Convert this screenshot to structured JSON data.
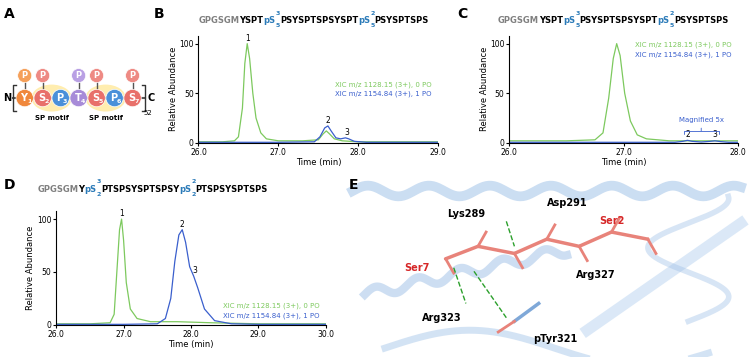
{
  "diagram": {
    "panel": "A",
    "residues": [
      {
        "label": "Y",
        "index": "1",
        "color": "#f0883c",
        "phospho": true,
        "phospho_color": "#f5a05a"
      },
      {
        "label": "S",
        "index": "2",
        "color": "#e8706a",
        "phospho": true,
        "phospho_color": "#ee8a84"
      },
      {
        "label": "P",
        "index": "3",
        "color": "#4a90d9",
        "phospho": false
      },
      {
        "label": "T",
        "index": "4",
        "color": "#a78bd8",
        "phospho": true,
        "phospho_color": "#b9a0e4"
      },
      {
        "label": "S",
        "index": "5",
        "color": "#e8706a",
        "phospho": true,
        "phospho_color": "#ee8a84"
      },
      {
        "label": "P",
        "index": "6",
        "color": "#4a90d9",
        "phospho": false
      },
      {
        "label": "S",
        "index": "7",
        "color": "#e8706a",
        "phospho": true,
        "phospho_color": "#ee8a84"
      }
    ],
    "phospho_label": "P",
    "motifs": [
      {
        "residues": [
          1,
          2
        ],
        "label": "SP motif"
      },
      {
        "residues": [
          4,
          5
        ],
        "label": "SP motif"
      }
    ],
    "n_term": "N",
    "c_term": "C",
    "repeats": "52"
  },
  "chart_data": [
    {
      "panel": "B",
      "type": "line",
      "title_parts": [
        {
          "text": "GPGSGM",
          "color": "#808080"
        },
        {
          "text": "YSPT",
          "color": "#000000"
        },
        {
          "text": "pS",
          "color": "#2a7ab8",
          "sup": "3",
          "sub": "5"
        },
        {
          "text": "PSYSPTSPSYSPT",
          "color": "#000000"
        },
        {
          "text": "pS",
          "color": "#2a7ab8",
          "sup": "2",
          "sub": "5"
        },
        {
          "text": "PSYSPTSPS",
          "color": "#000000"
        }
      ],
      "x_label": "Time (min)",
      "y_label": "Relative Abundance",
      "xlim": [
        26.0,
        29.0
      ],
      "xticks": [
        26.0,
        27.0,
        28.0,
        29.0
      ],
      "ylim": [
        0,
        108
      ],
      "yticks": [
        0,
        50,
        100
      ],
      "legend": "center right",
      "series": [
        {
          "name": "XIC m/z 1128.15 (3+), 0 PO",
          "color": "#7dc95e",
          "x": [
            26.0,
            26.3,
            26.45,
            26.5,
            26.55,
            26.58,
            26.61,
            26.64,
            26.68,
            26.72,
            26.78,
            26.85,
            27.0,
            27.3,
            27.5,
            27.56,
            27.6,
            27.64,
            27.7,
            27.8,
            28.0,
            28.5,
            29.0
          ],
          "values": [
            1,
            1,
            2,
            6,
            35,
            80,
            100,
            85,
            50,
            25,
            10,
            4,
            2,
            2,
            3,
            9,
            12,
            9,
            4,
            2,
            1,
            1,
            1
          ]
        },
        {
          "name": "XIC m/z 1154.84 (3+), 1 PO",
          "color": "#3a5fcd",
          "x": [
            26.0,
            27.0,
            27.45,
            27.52,
            27.58,
            27.62,
            27.66,
            27.72,
            27.78,
            27.84,
            27.88,
            27.95,
            28.1,
            28.5,
            29.0
          ],
          "values": [
            0.5,
            0.5,
            1,
            6,
            15,
            17,
            12,
            5,
            4,
            5,
            4,
            1.5,
            0.5,
            0.5,
            0.5
          ]
        }
      ],
      "annotations": [
        {
          "text": "1",
          "x": 26.61,
          "y": 101,
          "type": "label",
          "color": "#000000"
        },
        {
          "text": "2",
          "x": 27.62,
          "y": 18,
          "type": "label",
          "color": "#000000"
        },
        {
          "text": "3",
          "x": 27.86,
          "y": 6,
          "type": "label",
          "color": "#000000"
        }
      ]
    },
    {
      "panel": "C",
      "type": "line",
      "title_parts": [
        {
          "text": "GPGSGM",
          "color": "#808080"
        },
        {
          "text": "YSPT",
          "color": "#000000"
        },
        {
          "text": "pS",
          "color": "#2a7ab8",
          "sup": "3",
          "sub": "5"
        },
        {
          "text": "PSYSPTSPSYSPT",
          "color": "#000000"
        },
        {
          "text": "pS",
          "color": "#2a7ab8",
          "sup": "2",
          "sub": "5"
        },
        {
          "text": "PSYSPTSPS",
          "color": "#000000"
        }
      ],
      "x_label": "Time (min)",
      "y_label": "Relative Abundance",
      "xlim": [
        26.0,
        28.0
      ],
      "xticks": [
        26.0,
        27.0,
        28.0
      ],
      "ylim": [
        0,
        108
      ],
      "yticks": [
        0,
        50,
        100
      ],
      "legend": "upper right",
      "series": [
        {
          "name": "XIC m/z 1128.15 (3+), 0 PO",
          "color": "#7dc95e",
          "x": [
            26.0,
            26.5,
            26.75,
            26.82,
            26.87,
            26.91,
            26.94,
            26.97,
            27.01,
            27.06,
            27.12,
            27.2,
            27.4,
            27.7,
            28.0
          ],
          "values": [
            2,
            2,
            3,
            10,
            45,
            85,
            100,
            88,
            50,
            22,
            8,
            4,
            2,
            2,
            2
          ]
        },
        {
          "name": "XIC m/z 1154.84 (3+), 1 PO",
          "color": "#3a5fcd",
          "x": [
            26.0,
            27.0,
            27.45,
            27.52,
            27.56,
            27.6,
            27.68,
            27.76,
            27.8,
            27.85,
            27.92,
            28.0
          ],
          "values": [
            0.5,
            0.5,
            0.5,
            1.5,
            2.5,
            1.5,
            0.8,
            1.5,
            2,
            1.2,
            0.5,
            0.5
          ]
        }
      ],
      "annotations": [
        {
          "text": "2",
          "x": 27.56,
          "y": 3.5,
          "type": "label",
          "color": "#000000"
        },
        {
          "text": "3",
          "x": 27.8,
          "y": 3.5,
          "type": "label",
          "color": "#000000"
        },
        {
          "text": "Magnified 5x",
          "x": 27.68,
          "y": 12,
          "type": "bracket",
          "color": "#3a5fcd"
        }
      ]
    },
    {
      "panel": "D",
      "type": "line",
      "title_parts": [
        {
          "text": "GPGSGM",
          "color": "#808080"
        },
        {
          "text": "Y",
          "color": "#000000"
        },
        {
          "text": "pS",
          "color": "#2a7ab8",
          "sup": "3",
          "sub": "2"
        },
        {
          "text": "PTSPSYSPTSPSY",
          "color": "#000000"
        },
        {
          "text": "pS",
          "color": "#2a7ab8",
          "sup": "2",
          "sub": "2"
        },
        {
          "text": "PTSPSYSPTSPS",
          "color": "#000000"
        }
      ],
      "x_label": "Time (min)",
      "y_label": "Relative Abundance",
      "xlim": [
        26.0,
        30.0
      ],
      "xticks": [
        26.0,
        27.0,
        28.0,
        29.0,
        30.0
      ],
      "ylim": [
        0,
        108
      ],
      "yticks": [
        0,
        50,
        100
      ],
      "legend": "lower right",
      "series": [
        {
          "name": "XIC m/z 1128.15 (3+), 0 PO",
          "color": "#7dc95e",
          "x": [
            26.0,
            26.5,
            26.8,
            26.86,
            26.9,
            26.94,
            26.97,
            27.0,
            27.04,
            27.1,
            27.2,
            27.4,
            27.8,
            28.3,
            29.0,
            30.0
          ],
          "values": [
            1,
            1,
            2,
            10,
            50,
            90,
            100,
            80,
            40,
            15,
            6,
            3,
            3,
            2,
            1,
            1
          ]
        },
        {
          "name": "XIC m/z 1154.84 (3+), 1 PO",
          "color": "#3a5fcd",
          "x": [
            26.0,
            27.0,
            27.5,
            27.62,
            27.7,
            27.76,
            27.82,
            27.87,
            27.92,
            27.98,
            28.04,
            28.1,
            28.2,
            28.35,
            28.6,
            29.0,
            30.0
          ],
          "values": [
            0.5,
            0.5,
            1,
            6,
            25,
            60,
            85,
            90,
            78,
            55,
            46,
            35,
            15,
            4,
            1,
            0.5,
            0.5
          ]
        }
      ],
      "annotations": [
        {
          "text": "1",
          "x": 26.97,
          "y": 101,
          "type": "label",
          "color": "#000000"
        },
        {
          "text": "2",
          "x": 27.87,
          "y": 91,
          "type": "label",
          "color": "#000000"
        },
        {
          "text": "3",
          "x": 28.06,
          "y": 47,
          "type": "label",
          "color": "#000000"
        }
      ]
    }
  ],
  "structure": {
    "panel": "E",
    "labels": [
      {
        "text": "Asp291",
        "color": "#000000"
      },
      {
        "text": "Lys289",
        "color": "#000000"
      },
      {
        "text": "Ser2",
        "color": "#d62728"
      },
      {
        "text": "Ser7",
        "color": "#d62728"
      },
      {
        "text": "Arg327",
        "color": "#000000"
      },
      {
        "text": "Arg323",
        "color": "#000000"
      },
      {
        "text": "pTyr321",
        "color": "#000000"
      }
    ]
  }
}
